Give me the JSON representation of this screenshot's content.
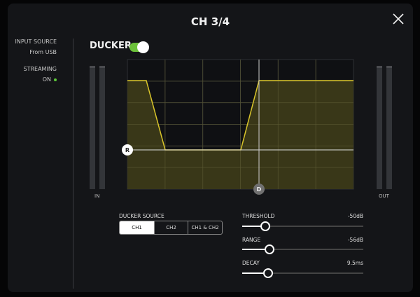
{
  "dialog": {
    "title": "CH 3/4",
    "close_icon": "close-icon"
  },
  "sidebar": {
    "input_source_label": "INPUT SOURCE",
    "input_source_value": "From USB",
    "streaming_label": "STREAMING",
    "streaming_value": "ON",
    "streaming_status_color": "#5cc83a"
  },
  "ducker": {
    "label": "DUCKER",
    "enabled": true,
    "toggle_color": "#6cc13a",
    "meter_in_label": "IN",
    "meter_out_label": "OUT",
    "graph": {
      "fill_color": "#3e3c1a",
      "line_color": "#d8c42a",
      "range_handle": "R",
      "decay_handle": "D"
    },
    "source": {
      "label": "DUCKER SOURCE",
      "options": [
        "CH1",
        "CH2",
        "CH1 & CH2"
      ],
      "selected": "CH1"
    },
    "params": [
      {
        "label": "THRESHOLD",
        "value": "-50dB",
        "position": 0.19
      },
      {
        "label": "RANGE",
        "value": "-56dB",
        "position": 0.225
      },
      {
        "label": "DECAY",
        "value": "9.5ms",
        "position": 0.215
      }
    ]
  }
}
